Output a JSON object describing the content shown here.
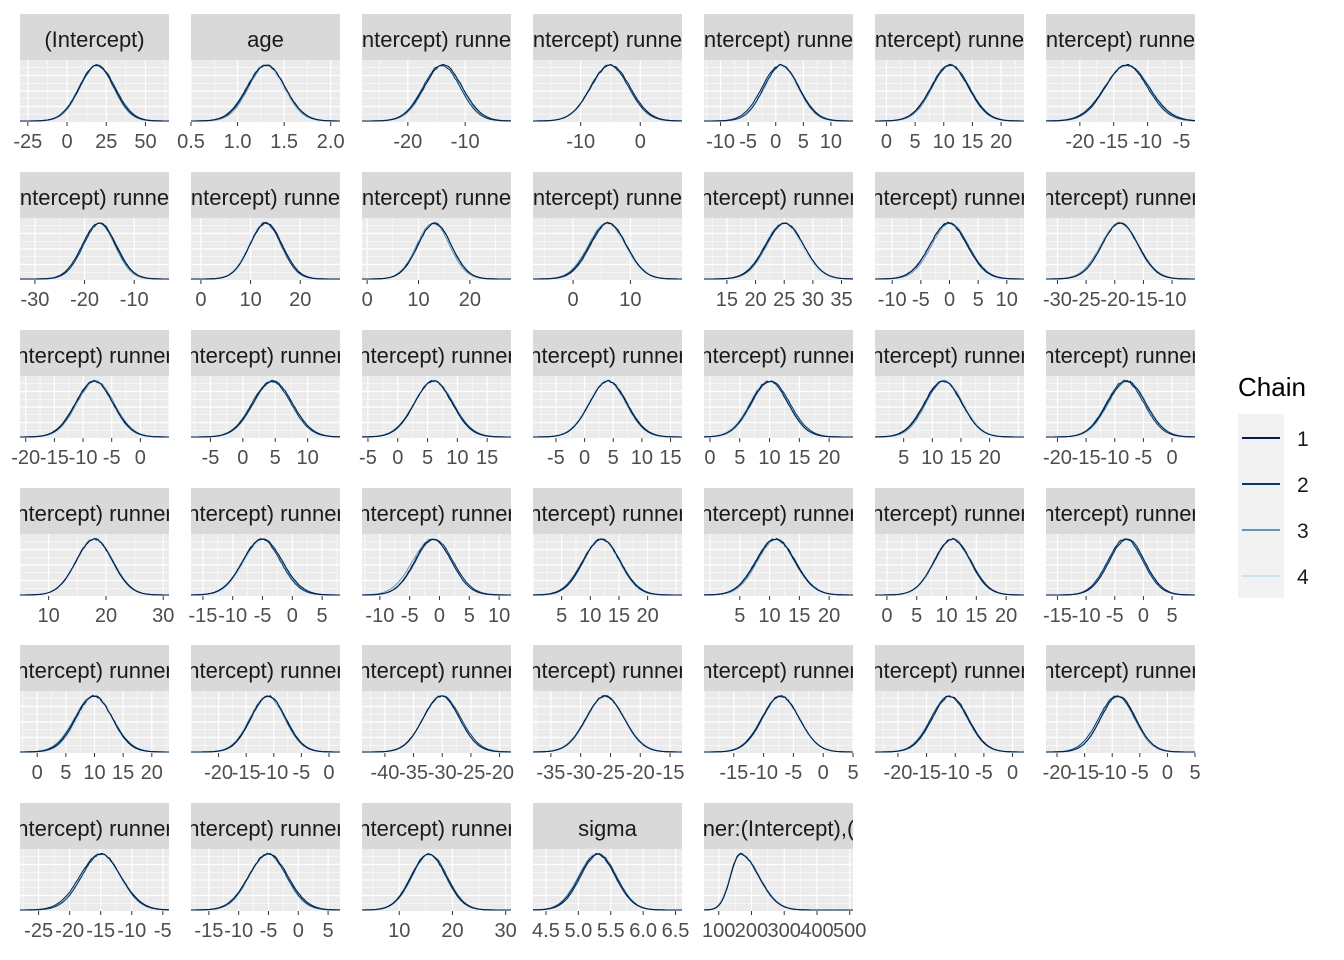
{
  "chart_data": {
    "type": "area",
    "description_kind": "faceted density plot per chain",
    "legend": {
      "title": "Chain",
      "placement": "right",
      "entries": [
        "1",
        "2",
        "3",
        "4"
      ],
      "colors": [
        "#011f4b",
        "#03396c",
        "#6497b1",
        "#d1e1ec"
      ]
    },
    "panel_background": "#ebebeb",
    "strip_background": "#d9d9d9",
    "gridlines": "#ffffff",
    "panels": [
      {
        "title": "(Intercept)",
        "xlim": [
          -30,
          65
        ],
        "ticks": [
          -25,
          0,
          25,
          50
        ],
        "tick_labels": [
          "-25",
          "0",
          "25",
          "50"
        ],
        "mean": 19,
        "sd": 11
      },
      {
        "title": "age",
        "xlim": [
          0.5,
          2.1
        ],
        "ticks": [
          0.5,
          1.0,
          1.5,
          2.0
        ],
        "tick_labels": [
          "0.5",
          "1.0",
          "1.5",
          "2.0"
        ],
        "mean": 1.3,
        "sd": 0.2
      },
      {
        "title": "ntercept) runne",
        "xlim": [
          -28,
          -2
        ],
        "ticks": [
          -20,
          -10
        ],
        "tick_labels": [
          "-20",
          "-10"
        ],
        "mean": -14,
        "sd": 3.3
      },
      {
        "title": "ntercept) runne",
        "xlim": [
          -18,
          7
        ],
        "ticks": [
          -10,
          0
        ],
        "tick_labels": [
          "-10",
          "0"
        ],
        "mean": -5,
        "sd": 3.2
      },
      {
        "title": "ntercept) runne",
        "xlim": [
          -13,
          14
        ],
        "ticks": [
          -10,
          -5,
          0,
          5,
          10
        ],
        "tick_labels": [
          "-10",
          "-5",
          "0",
          "5",
          "10"
        ],
        "mean": 1,
        "sd": 3.2
      },
      {
        "title": "ntercept) runne",
        "xlim": [
          -2,
          24
        ],
        "ticks": [
          0,
          5,
          10,
          15,
          20
        ],
        "tick_labels": [
          "0",
          "5",
          "10",
          "15",
          "20"
        ],
        "mean": 11,
        "sd": 3.2
      },
      {
        "title": "ntercept) runne",
        "xlim": [
          -25,
          -3
        ],
        "ticks": [
          -20,
          -15,
          -10,
          -5
        ],
        "tick_labels": [
          "-20",
          "-15",
          "-10",
          "-5"
        ],
        "mean": -13,
        "sd": 3.2
      },
      {
        "title": "ntercept) runne",
        "xlim": [
          -33,
          -3
        ],
        "ticks": [
          -30,
          -20,
          -10
        ],
        "tick_labels": [
          "-30",
          "-20",
          "-10"
        ],
        "mean": -17,
        "sd": 3.3
      },
      {
        "title": "ntercept) runne",
        "xlim": [
          -2,
          28
        ],
        "ticks": [
          0,
          10,
          20
        ],
        "tick_labels": [
          "0",
          "10",
          "20"
        ],
        "mean": 13,
        "sd": 3.3
      },
      {
        "title": "ntercept) runne",
        "xlim": [
          -1,
          28
        ],
        "ticks": [
          0,
          10,
          20
        ],
        "tick_labels": [
          "0",
          "10",
          "20"
        ],
        "mean": 13,
        "sd": 3.3
      },
      {
        "title": "ntercept) runne",
        "xlim": [
          -7,
          19
        ],
        "ticks": [
          0,
          10
        ],
        "tick_labels": [
          "0",
          "10"
        ],
        "mean": 6,
        "sd": 3.2
      },
      {
        "title": "ntercept) runner",
        "xlim": [
          11,
          37
        ],
        "ticks": [
          15,
          20,
          25,
          30,
          35
        ],
        "tick_labels": [
          "15",
          "20",
          "25",
          "30",
          "35"
        ],
        "mean": 25,
        "sd": 3.2
      },
      {
        "title": "ntercept) runner",
        "xlim": [
          -13,
          13
        ],
        "ticks": [
          -10,
          -5,
          0,
          5,
          10
        ],
        "tick_labels": [
          "-10",
          "-5",
          "0",
          "5",
          "10"
        ],
        "mean": 0,
        "sd": 3.2
      },
      {
        "title": "ntercept) runner",
        "xlim": [
          -32,
          -6
        ],
        "ticks": [
          -30,
          -25,
          -20,
          -15,
          -10
        ],
        "tick_labels": [
          "-30",
          "-25",
          "-20",
          "-15",
          "-10"
        ],
        "mean": -19,
        "sd": 3.2
      },
      {
        "title": "ntercept) runner",
        "xlim": [
          -21,
          5
        ],
        "ticks": [
          -20,
          -15,
          -10,
          -5,
          0
        ],
        "tick_labels": [
          "-20",
          "-15",
          "-10",
          "-5",
          "0"
        ],
        "mean": -8,
        "sd": 3.2
      },
      {
        "title": "ntercept) runner",
        "xlim": [
          -8,
          15
        ],
        "ticks": [
          -5,
          0,
          5,
          10
        ],
        "tick_labels": [
          "-5",
          "0",
          "5",
          "10"
        ],
        "mean": 4.5,
        "sd": 3.0
      },
      {
        "title": "ntercept) runner",
        "xlim": [
          -6,
          19
        ],
        "ticks": [
          -5,
          0,
          5,
          10,
          15
        ],
        "tick_labels": [
          "-5",
          "0",
          "5",
          "10",
          "15"
        ],
        "mean": 6,
        "sd": 3.2
      },
      {
        "title": "ntercept) runner",
        "xlim": [
          -9,
          17
        ],
        "ticks": [
          -5,
          0,
          5,
          10,
          15
        ],
        "tick_labels": [
          "-5",
          "0",
          "5",
          "10",
          "15"
        ],
        "mean": 4,
        "sd": 3.2
      },
      {
        "title": "ntercept) runner",
        "xlim": [
          -1,
          24
        ],
        "ticks": [
          0,
          5,
          10,
          15,
          20
        ],
        "tick_labels": [
          "0",
          "5",
          "10",
          "15",
          "20"
        ],
        "mean": 10,
        "sd": 3.2
      },
      {
        "title": "ntercept) runner",
        "xlim": [
          0,
          26
        ],
        "ticks": [
          5,
          10,
          15,
          20
        ],
        "tick_labels": [
          "5",
          "10",
          "15",
          "20"
        ],
        "mean": 12,
        "sd": 3.2
      },
      {
        "title": "ntercept) runner",
        "xlim": [
          -22,
          4
        ],
        "ticks": [
          -20,
          -15,
          -10,
          -5,
          0
        ],
        "tick_labels": [
          "-20",
          "-15",
          "-10",
          "-5",
          "0"
        ],
        "mean": -8,
        "sd": 3.2
      },
      {
        "title": "ntercept) runner",
        "xlim": [
          5,
          31
        ],
        "ticks": [
          10,
          20,
          30
        ],
        "tick_labels": [
          "10",
          "20",
          "30"
        ],
        "mean": 18,
        "sd": 3.2
      },
      {
        "title": "ntercept) runner",
        "xlim": [
          -17,
          8
        ],
        "ticks": [
          -15,
          -10,
          -5,
          0,
          5
        ],
        "tick_labels": [
          "-15",
          "-10",
          "-5",
          "0",
          "5"
        ],
        "mean": -5,
        "sd": 3.2
      },
      {
        "title": "ntercept) runner",
        "xlim": [
          -13,
          12
        ],
        "ticks": [
          -10,
          -5,
          0,
          5,
          10
        ],
        "tick_labels": [
          "-10",
          "-5",
          "0",
          "5",
          "10"
        ],
        "mean": -1,
        "sd": 3.2
      },
      {
        "title": "ntercept) runner",
        "xlim": [
          0,
          26
        ],
        "ticks": [
          5,
          10,
          15,
          20
        ],
        "tick_labels": [
          "5",
          "10",
          "15",
          "20"
        ],
        "mean": 12,
        "sd": 3.2
      },
      {
        "title": "ntercept) runner",
        "xlim": [
          -1,
          24
        ],
        "ticks": [
          5,
          10,
          15,
          20
        ],
        "tick_labels": [
          "5",
          "10",
          "15",
          "20"
        ],
        "mean": 11,
        "sd": 3.2
      },
      {
        "title": "ntercept) runner",
        "xlim": [
          -2,
          23
        ],
        "ticks": [
          0,
          5,
          10,
          15,
          20
        ],
        "tick_labels": [
          "0",
          "5",
          "10",
          "15",
          "20"
        ],
        "mean": 11,
        "sd": 3.0
      },
      {
        "title": "ntercept) runner",
        "xlim": [
          -17,
          9
        ],
        "ticks": [
          -15,
          -10,
          -5,
          0,
          5
        ],
        "tick_labels": [
          "-15",
          "-10",
          "-5",
          "0",
          "5"
        ],
        "mean": -3,
        "sd": 3.2
      },
      {
        "title": "ntercept) runner",
        "xlim": [
          -3,
          23
        ],
        "ticks": [
          0,
          5,
          10,
          15,
          20
        ],
        "tick_labels": [
          "0",
          "5",
          "10",
          "15",
          "20"
        ],
        "mean": 10,
        "sd": 3.2
      },
      {
        "title": "ntercept) runner",
        "xlim": [
          -25,
          2
        ],
        "ticks": [
          -20,
          -15,
          -10,
          -5,
          0
        ],
        "tick_labels": [
          "-20",
          "-15",
          "-10",
          "-5",
          "0"
        ],
        "mean": -11,
        "sd": 3.2
      },
      {
        "title": "ntercept) runner",
        "xlim": [
          -44,
          -18
        ],
        "ticks": [
          -40,
          -35,
          -30,
          -25,
          -20
        ],
        "tick_labels": [
          "-40",
          "-35",
          "-30",
          "-25",
          "-20"
        ],
        "mean": -30,
        "sd": 3.2
      },
      {
        "title": "ntercept) runner",
        "xlim": [
          -38,
          -13
        ],
        "ticks": [
          -35,
          -30,
          -25,
          -20,
          -15
        ],
        "tick_labels": [
          "-35",
          "-30",
          "-25",
          "-20",
          "-15"
        ],
        "mean": -26,
        "sd": 3.2
      },
      {
        "title": "ntercept) runner",
        "xlim": [
          -20,
          5
        ],
        "ticks": [
          -15,
          -10,
          -5,
          0,
          5
        ],
        "tick_labels": [
          "-15",
          "-10",
          "-5",
          "0",
          "5"
        ],
        "mean": -7,
        "sd": 3.2
      },
      {
        "title": "ntercept) runner",
        "xlim": [
          -24,
          2
        ],
        "ticks": [
          -20,
          -15,
          -10,
          -5,
          0
        ],
        "tick_labels": [
          "-20",
          "-15",
          "-10",
          "-5",
          "0"
        ],
        "mean": -11,
        "sd": 3.2
      },
      {
        "title": "ntercept) runner",
        "xlim": [
          -22,
          5
        ],
        "ticks": [
          -20,
          -15,
          -10,
          -5,
          0,
          5
        ],
        "tick_labels": [
          "-20",
          "-15",
          "-10",
          "-5",
          "0",
          "5"
        ],
        "mean": -9,
        "sd": 3.2
      },
      {
        "title": "ntercept) runner",
        "xlim": [
          -28,
          -4
        ],
        "ticks": [
          -25,
          -20,
          -15,
          -10,
          -5
        ],
        "tick_labels": [
          "-25",
          "-20",
          "-15",
          "-10",
          "-5"
        ],
        "mean": -15,
        "sd": 3.2
      },
      {
        "title": "ntercept) runner",
        "xlim": [
          -18,
          7
        ],
        "ticks": [
          -15,
          -10,
          -5,
          0,
          5
        ],
        "tick_labels": [
          "-15",
          "-10",
          "-5",
          "0",
          "5"
        ],
        "mean": -5,
        "sd": 3.2
      },
      {
        "title": "ntercept) runner",
        "xlim": [
          3,
          31
        ],
        "ticks": [
          10,
          20,
          30
        ],
        "tick_labels": [
          "10",
          "20",
          "30"
        ],
        "mean": 15.5,
        "sd": 3.2
      },
      {
        "title": "sigma",
        "xlim": [
          4.3,
          6.6
        ],
        "ticks": [
          4.5,
          5.0,
          5.5,
          6.0,
          6.5
        ],
        "tick_labels": [
          "4.5",
          "5.0",
          "5.5",
          "6.0",
          "6.5"
        ],
        "mean": 5.3,
        "sd": 0.28
      },
      {
        "title": "ner:(Intercept),(",
        "xlim": [
          55,
          510
        ],
        "ticks": [
          100,
          200,
          300,
          400,
          500
        ],
        "tick_labels": [
          "100",
          "200",
          "300",
          "400",
          "500"
        ],
        "mean": 165,
        "sd": 40,
        "skew": true
      }
    ]
  }
}
